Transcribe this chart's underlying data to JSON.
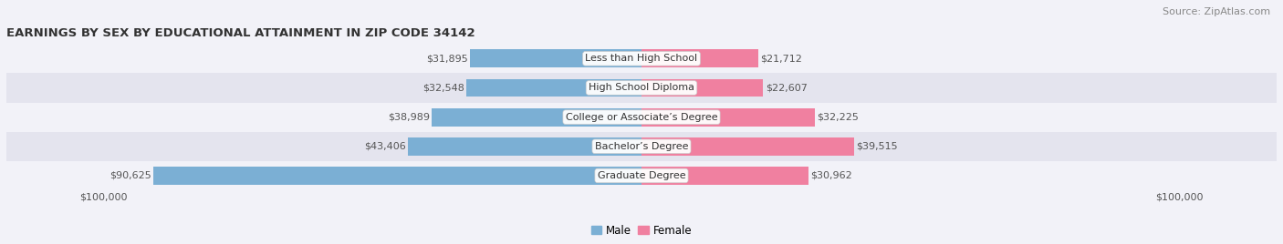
{
  "title": "EARNINGS BY SEX BY EDUCATIONAL ATTAINMENT IN ZIP CODE 34142",
  "source": "Source: ZipAtlas.com",
  "categories": [
    "Less than High School",
    "High School Diploma",
    "College or Associate’s Degree",
    "Bachelor’s Degree",
    "Graduate Degree"
  ],
  "male_values": [
    31895,
    32548,
    38989,
    43406,
    90625
  ],
  "female_values": [
    21712,
    22607,
    32225,
    39515,
    30962
  ],
  "male_color": "#7bafd4",
  "female_color": "#f080a0",
  "max_value": 100000,
  "bar_height": 0.62,
  "background_color": "#f2f2f8",
  "row_bg_light": "#f2f2f8",
  "row_bg_dark": "#e4e4ee",
  "title_fontsize": 9.5,
  "label_fontsize": 8,
  "tick_fontsize": 8,
  "source_fontsize": 8,
  "value_fontsize": 8
}
